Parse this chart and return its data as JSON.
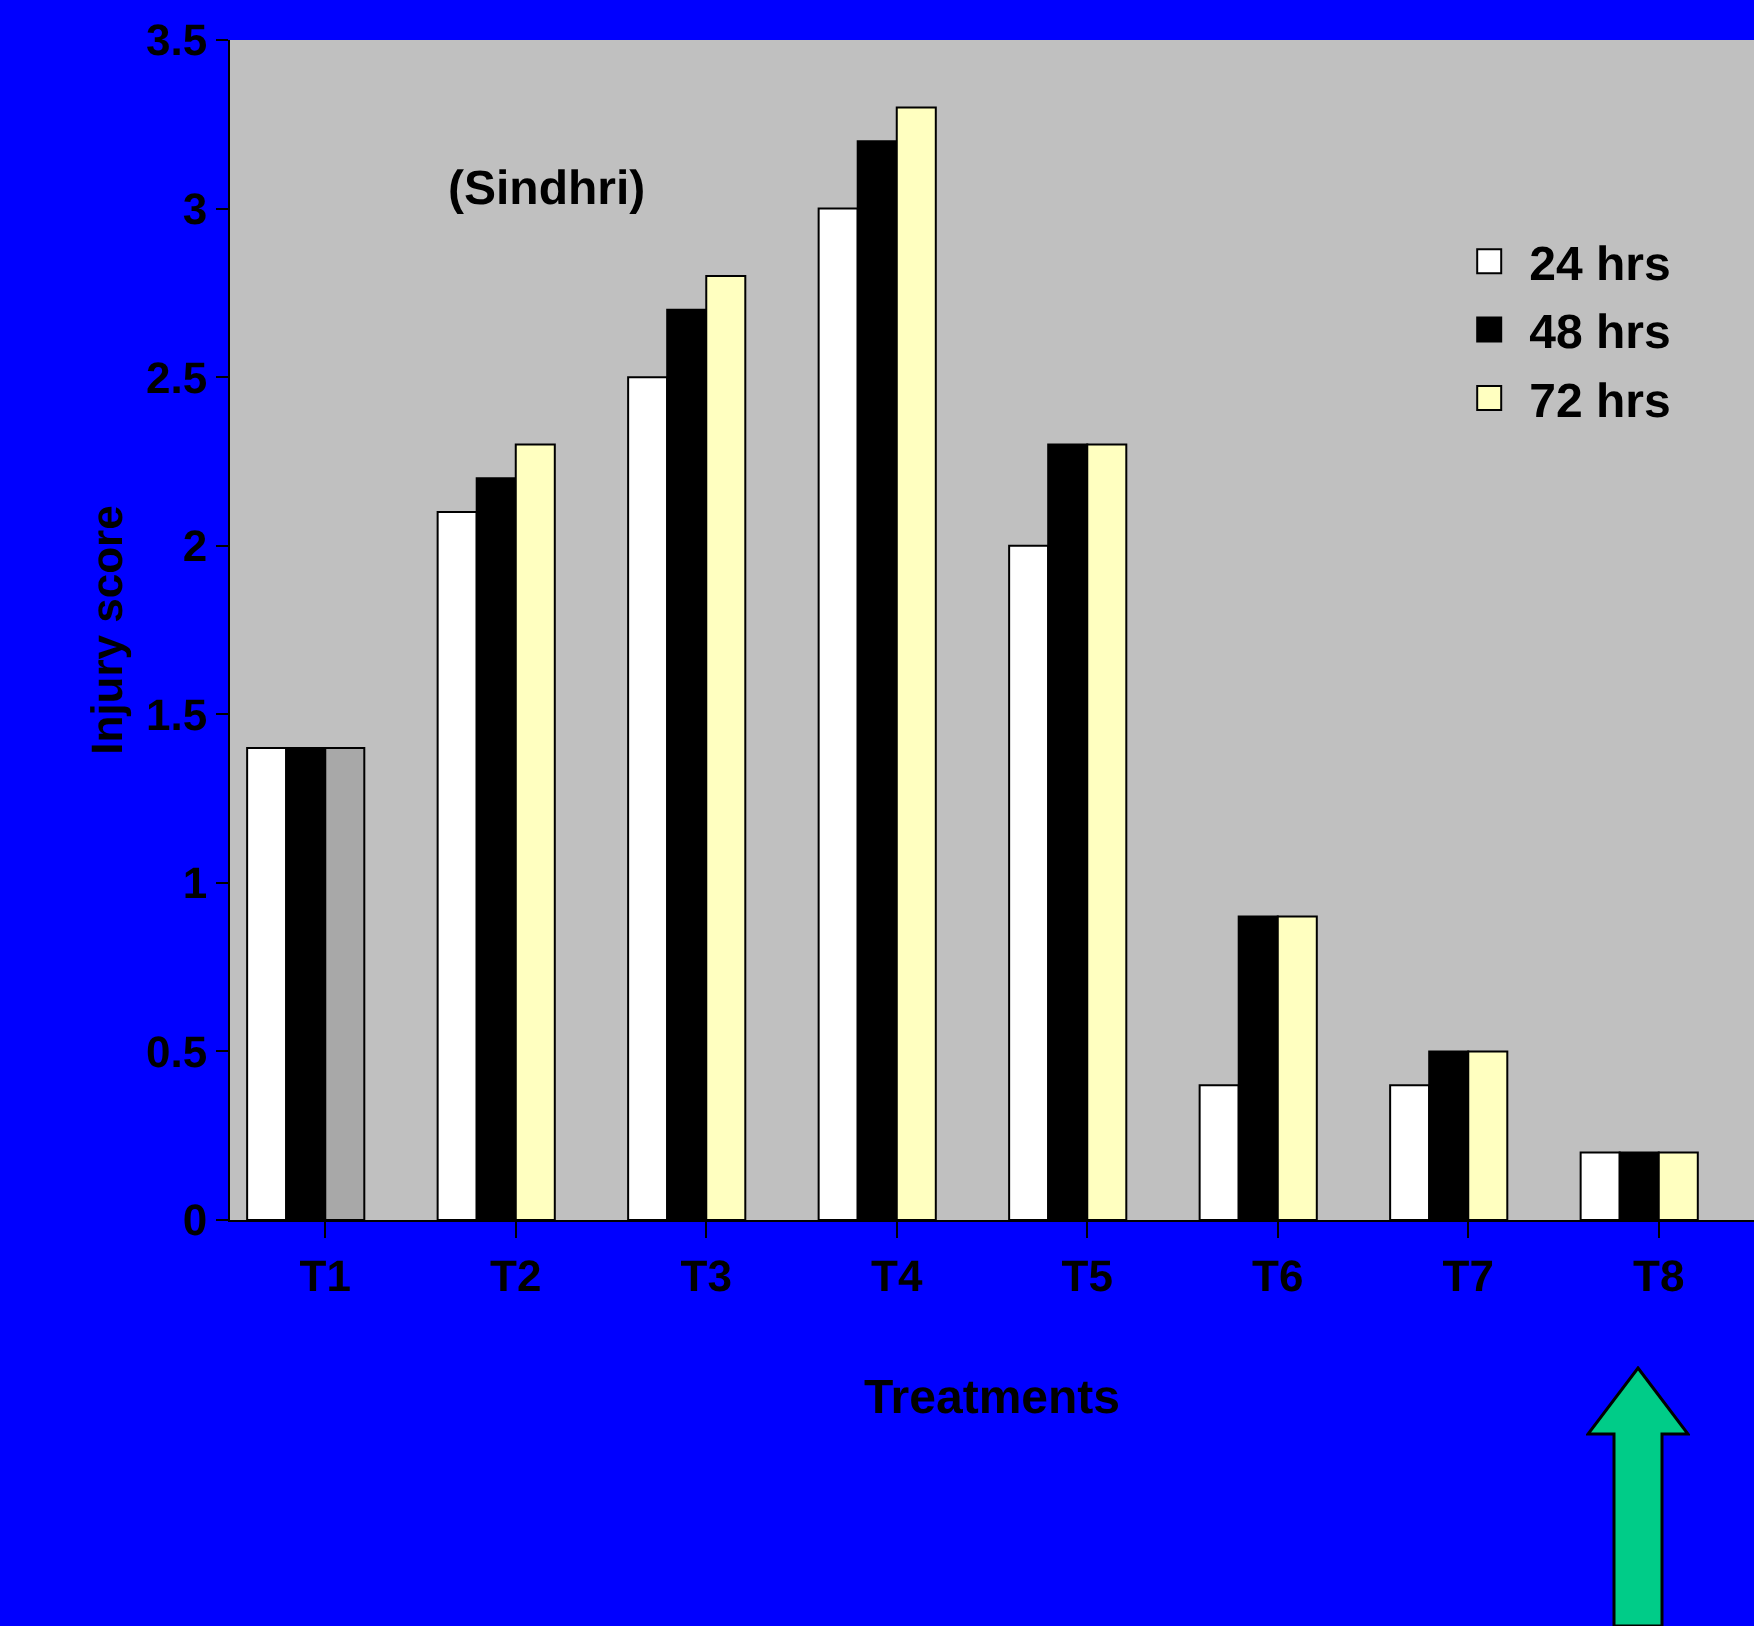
{
  "chart_data": {
    "type": "bar",
    "xlabel": "Treatments",
    "ylabel": "Injury score",
    "annotations": [
      "(Sindhri)"
    ],
    "categories": [
      "T1",
      "T2",
      "T3",
      "T4",
      "T5",
      "T6",
      "T7",
      "T8"
    ],
    "series": [
      {
        "name": "24 hrs",
        "color": "#ffffff",
        "values": [
          1.4,
          2.1,
          2.5,
          3.0,
          2.0,
          0.4,
          0.4,
          0.2
        ]
      },
      {
        "name": "48 hrs",
        "color": "#000000",
        "values": [
          1.4,
          2.2,
          2.7,
          3.2,
          2.3,
          0.9,
          0.5,
          0.2
        ]
      },
      {
        "name": "72 hrs",
        "color": "#ffffc0",
        "colors": [
          "#a8a8a8",
          "#ffffc0",
          "#ffffc0",
          "#ffffc0",
          "#ffffc0",
          "#ffffc0",
          "#ffffc0",
          "#ffffc0"
        ],
        "values": [
          1.4,
          2.3,
          2.8,
          3.3,
          2.3,
          0.9,
          0.5,
          0.2
        ]
      }
    ],
    "ylim": [
      0,
      3.5
    ],
    "yticks": [
      0,
      0.5,
      1,
      1.5,
      2,
      2.5,
      3,
      3.5
    ],
    "grid": false,
    "legend": "top right"
  }
}
